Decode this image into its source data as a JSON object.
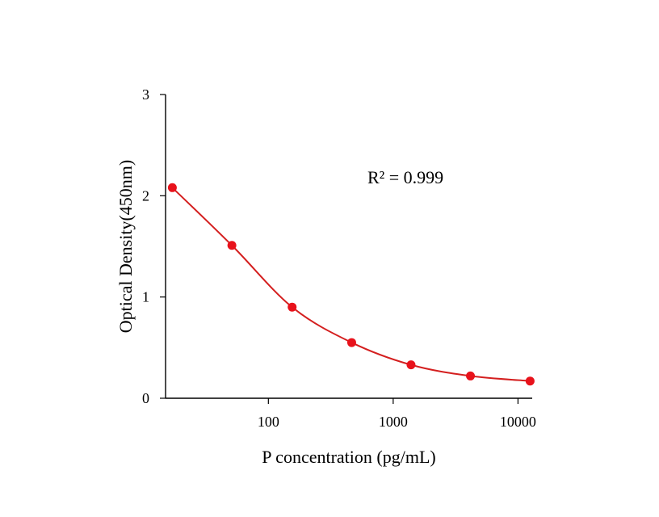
{
  "chart_data": {
    "type": "scatter",
    "title": "",
    "xlabel": "P concentration (pg/mL)",
    "ylabel": "Optical Density(450nm)",
    "x_scale": "log",
    "xlim": [
      15,
      13000
    ],
    "ylim": [
      0,
      3
    ],
    "x_ticks": [
      100,
      1000,
      10000
    ],
    "x_tick_labels": [
      "100",
      "1000",
      "10000"
    ],
    "y_ticks": [
      0,
      1,
      2,
      3
    ],
    "y_tick_labels": [
      "0",
      "1",
      "2",
      "3"
    ],
    "grid": false,
    "legend": "none",
    "annotation": "R² = 0.999",
    "colors": {
      "series": "#e8121b",
      "curve": "#d41f1f",
      "axis": "#000000"
    },
    "series": [
      {
        "x": [
          17,
          51,
          155,
          465,
          1390,
          4160,
          12500
        ],
        "y": [
          2.08,
          1.51,
          0.9,
          0.55,
          0.33,
          0.22,
          0.17
        ]
      }
    ]
  }
}
